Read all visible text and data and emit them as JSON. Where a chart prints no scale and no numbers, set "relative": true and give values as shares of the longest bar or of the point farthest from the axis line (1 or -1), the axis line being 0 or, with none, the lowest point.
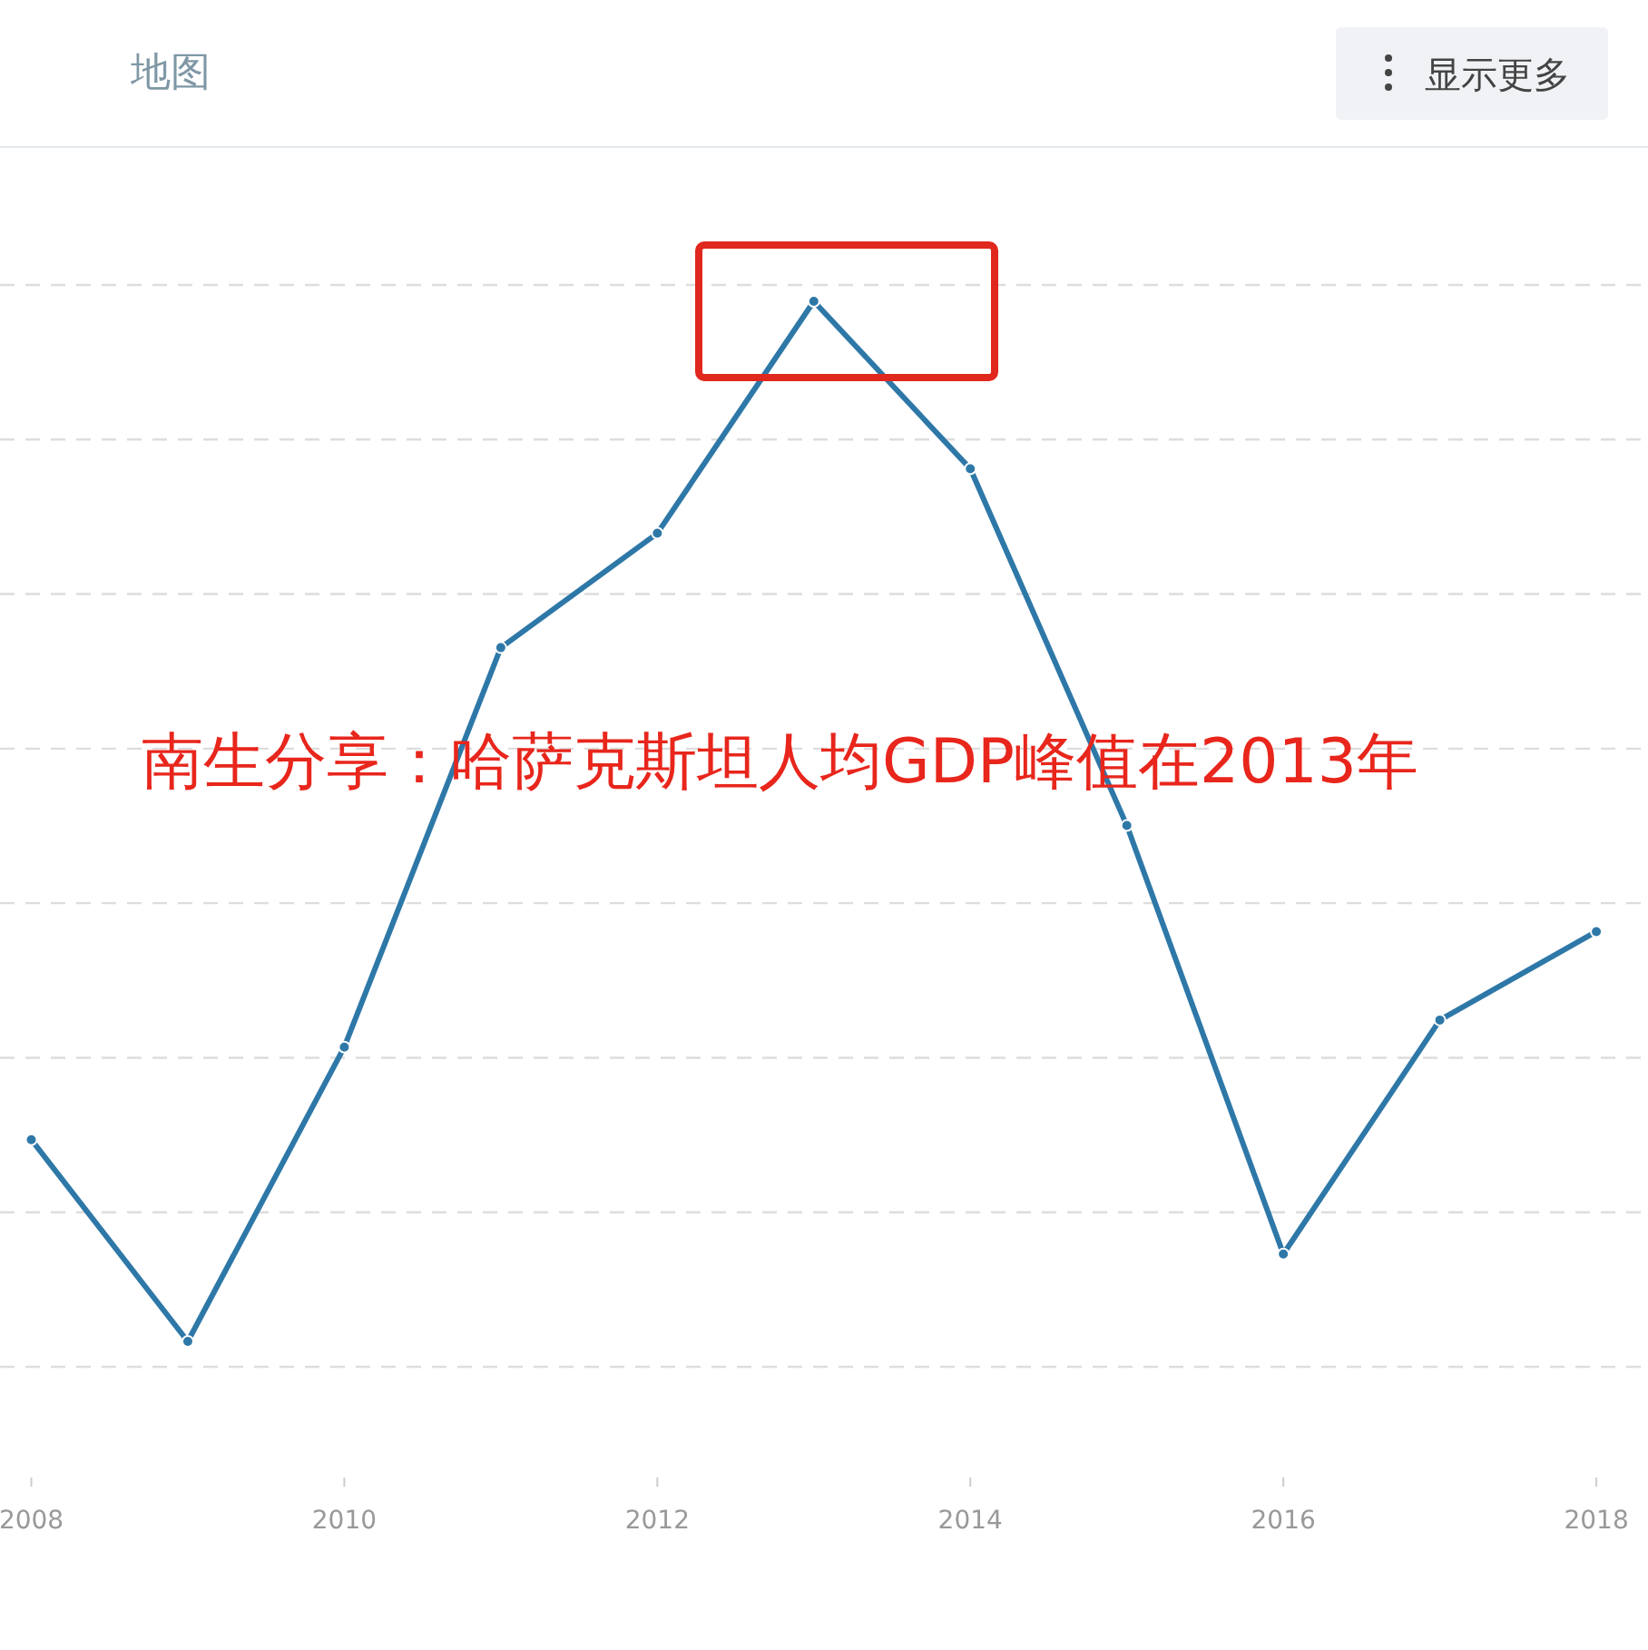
{
  "chart_data": {
    "type": "line",
    "relative": true,
    "x": [
      2008,
      2009,
      2010,
      2011,
      2012,
      2013,
      2014,
      2015,
      2016,
      2017,
      2018
    ],
    "series": [
      {
        "color": "#2e78a8",
        "values": [
          0.194,
          0,
          0.283,
          0.667,
          0.777,
          1,
          0.839,
          0.496,
          0.084,
          0.309,
          0.394
        ]
      }
    ],
    "xlim": [
      2007.8,
      2018.33
    ],
    "xticks": [
      2008,
      2010,
      2012,
      2014,
      2016,
      2018
    ],
    "grid": "y",
    "marker": "circle",
    "line_style": "solid",
    "annotations": [
      "地图",
      "显示更多",
      "南生分享：哈萨克斯坦人均GDP峰值在2013年"
    ]
  }
}
